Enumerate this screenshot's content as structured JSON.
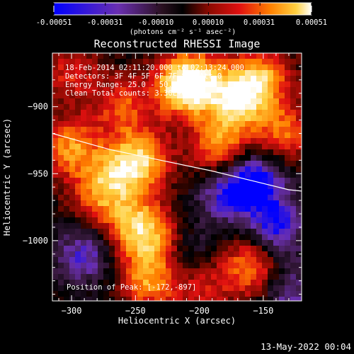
{
  "colorbar": {
    "ticks": [
      "-0.00051",
      "-0.00031",
      "-0.00010",
      "0.00010",
      "0.00031",
      "0.00051"
    ],
    "unit_label": "(photons cm⁻² s⁻¹ asec⁻²)"
  },
  "header": {
    "title": "Reconstructed RHESSI Image",
    "lines": [
      "18-Feb-2014 02:11:20.000 to 02:13:24.000",
      "Detectors: 3F 4F 5F 6F 7F 8F, Att 0",
      "Energy Range: 25.0 - 50.0 keV",
      "Clean     Total counts: 3.30E+03"
    ],
    "peak_label": "Position of Peak:",
    "peak_value": "[-172,-897]"
  },
  "footer": {
    "timestamp": "13-May-2022 00:04"
  },
  "colors": {
    "background": "#000000",
    "text": "#ffffff",
    "limb": "#ffffff",
    "colormap": [
      "#0000ff",
      "#6a2fb0",
      "#3a1a40",
      "#000000",
      "#7a0a00",
      "#e01010",
      "#ff8000",
      "#ffd040",
      "#ffffff"
    ]
  },
  "chart_data": {
    "type": "heatmap",
    "title": "Reconstructed RHESSI Image",
    "xlabel": "Heliocentric X (arcsec)",
    "ylabel": "Heliocentric Y (arcsec)",
    "xlim": [
      -315,
      -120
    ],
    "ylim": [
      -1045,
      -860
    ],
    "xticks": [
      -300,
      -250,
      -200,
      -150
    ],
    "yticks": [
      -900,
      -950,
      -1000
    ],
    "colorbar_range": [
      -0.00051,
      0.00051
    ],
    "peak": [
      -172,
      -897
    ],
    "limb": [
      [
        -315,
        -920
      ],
      [
        -270,
        -932
      ],
      [
        -230,
        -940
      ],
      [
        -190,
        -948
      ],
      [
        -160,
        -955
      ],
      [
        -130,
        -962
      ],
      [
        -120,
        -963
      ]
    ],
    "sources": [
      {
        "x": -215,
        "y": -885,
        "value": 0.00051
      },
      {
        "x": -170,
        "y": -895,
        "value": 0.00051
      },
      {
        "x": -150,
        "y": -878,
        "value": 0.0004
      },
      {
        "x": -245,
        "y": -940,
        "value": 0.00045
      },
      {
        "x": -300,
        "y": -930,
        "value": 0.0004
      },
      {
        "x": -260,
        "y": -900,
        "value": 0.0003
      },
      {
        "x": -300,
        "y": -875,
        "value": 0.00025
      },
      {
        "x": -185,
        "y": -930,
        "value": 0.0004
      },
      {
        "x": -135,
        "y": -920,
        "value": 0.00035
      },
      {
        "x": -280,
        "y": -968,
        "value": 0.0003
      },
      {
        "x": -250,
        "y": -990,
        "value": 0.00045
      },
      {
        "x": -240,
        "y": -1030,
        "value": 0.0004
      },
      {
        "x": -200,
        "y": -1035,
        "value": 0.00025
      },
      {
        "x": -160,
        "y": -1020,
        "value": 0.0004
      },
      {
        "x": -230,
        "y": -1000,
        "value": 0.00025
      },
      {
        "x": -200,
        "y": -880,
        "value": 0.00035
      },
      {
        "x": -265,
        "y": -950,
        "value": 0.0003
      },
      {
        "x": -180,
        "y": -965,
        "value": -0.0003
      },
      {
        "x": -140,
        "y": -990,
        "value": -0.00035
      },
      {
        "x": -290,
        "y": -1010,
        "value": -0.0003
      },
      {
        "x": -210,
        "y": -1010,
        "value": -0.0002
      },
      {
        "x": -155,
        "y": -955,
        "value": -0.0004
      },
      {
        "x": -130,
        "y": -1040,
        "value": -0.00025
      }
    ]
  }
}
